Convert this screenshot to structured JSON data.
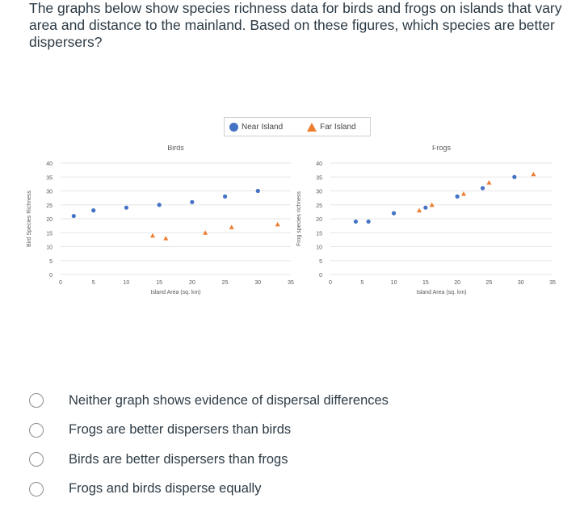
{
  "question": {
    "text": "The graphs below show species richness data for birds and frogs on islands that vary area and distance to the mainland. Based on these figures, which species are better dispersers?"
  },
  "legend": {
    "near_label": "Near Island",
    "far_label": "Far Island",
    "near_color": "#4472c4",
    "far_color": "#ed7d31"
  },
  "chart_data": [
    {
      "type": "scatter",
      "title": "Birds",
      "xlabel": "Island Area (sq. km)",
      "ylabel": "Bird Species Richness",
      "xlim": [
        0,
        35
      ],
      "ylim": [
        0,
        40
      ],
      "xticks": [
        0,
        5,
        10,
        15,
        20,
        25,
        30,
        35
      ],
      "yticks": [
        0,
        5,
        10,
        15,
        20,
        25,
        30,
        35,
        40
      ],
      "series": [
        {
          "name": "Near Island",
          "color": "#4472c4",
          "marker": "circle",
          "x": [
            2,
            5,
            10,
            15,
            20,
            25,
            30
          ],
          "y": [
            21,
            23,
            24,
            25,
            26,
            28,
            30
          ]
        },
        {
          "name": "Far Island",
          "color": "#ed7d31",
          "marker": "triangle",
          "x": [
            14,
            16,
            22,
            26,
            33
          ],
          "y": [
            14,
            13,
            15,
            17,
            18
          ]
        }
      ]
    },
    {
      "type": "scatter",
      "title": "Frogs",
      "xlabel": "Island Area (sq. km)",
      "ylabel": "Frog species richness",
      "xlim": [
        0,
        35
      ],
      "ylim": [
        0,
        40
      ],
      "xticks": [
        0,
        5,
        10,
        15,
        20,
        25,
        30,
        35
      ],
      "yticks": [
        0,
        5,
        10,
        15,
        20,
        25,
        30,
        35,
        40
      ],
      "series": [
        {
          "name": "Near Island",
          "color": "#4472c4",
          "marker": "circle",
          "x": [
            4,
            6,
            10,
            15,
            20,
            24,
            29
          ],
          "y": [
            19,
            19,
            22,
            24,
            28,
            31,
            35
          ]
        },
        {
          "name": "Far Island",
          "color": "#ed7d31",
          "marker": "triangle",
          "x": [
            14,
            16,
            21,
            25,
            32
          ],
          "y": [
            23,
            25,
            29,
            33,
            36
          ]
        }
      ]
    }
  ],
  "options": [
    {
      "label": "Neither graph shows evidence of dispersal differences"
    },
    {
      "label": "Frogs are better dispersers than birds"
    },
    {
      "label": "Birds are better dispersers than frogs"
    },
    {
      "label": "Frogs and birds disperse equally"
    }
  ]
}
